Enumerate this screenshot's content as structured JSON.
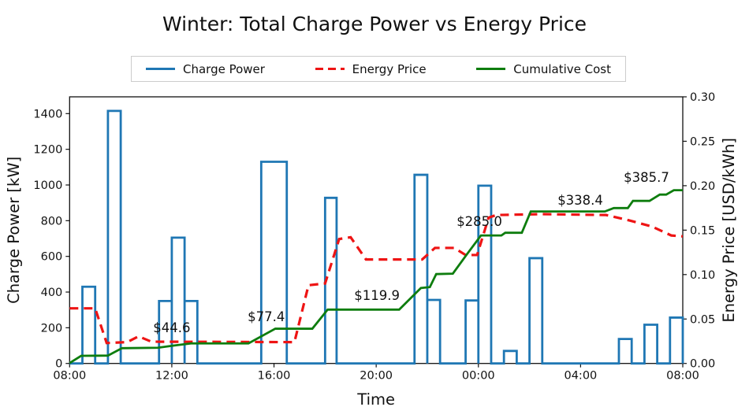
{
  "chart_data": {
    "type": "line",
    "title": "Winter: Total Charge Power vs Energy Price",
    "xlabel": "Time",
    "ylabel_left": "Charge Power [kW]",
    "ylabel_right": "Energy Price [USD/kWh]",
    "x_domain_hours": [
      8,
      32
    ],
    "x_ticks": [
      {
        "t": 8,
        "label": "08:00"
      },
      {
        "t": 12,
        "label": "12:00"
      },
      {
        "t": 16,
        "label": "16:00"
      },
      {
        "t": 20,
        "label": "20:00"
      },
      {
        "t": 24,
        "label": "00:00"
      },
      {
        "t": 28,
        "label": "04:00"
      },
      {
        "t": 32,
        "label": "08:00"
      }
    ],
    "y_left": {
      "lim": [
        0,
        1494
      ],
      "ticks": [
        0,
        200,
        400,
        600,
        800,
        1000,
        1200,
        1400
      ]
    },
    "y_right": {
      "lim": [
        0,
        0.3
      ],
      "ticks": [
        {
          "v": 0.0,
          "label": "0.00"
        },
        {
          "v": 0.05,
          "label": "0.05"
        },
        {
          "v": 0.1,
          "label": "0.10"
        },
        {
          "v": 0.15,
          "label": "0.15"
        },
        {
          "v": 0.2,
          "label": "0.20"
        },
        {
          "v": 0.25,
          "label": "0.25"
        },
        {
          "v": 0.3,
          "label": "0.30"
        }
      ]
    },
    "legend": [
      {
        "label": "Charge Power",
        "color": "#1f77b4",
        "style": "solid"
      },
      {
        "label": "Energy Price",
        "color": "#ee1414",
        "style": "dashed"
      },
      {
        "label": "Cumulative Cost",
        "color": "#0e7d0e",
        "style": "solid"
      }
    ],
    "grid": false,
    "legend_position": "top-center",
    "series": {
      "charge_power_kw": {
        "note": "step intervals [start_hour, end_hour, kW]; hours >24 are past midnight",
        "intervals": [
          [
            8.5,
            9.0,
            430
          ],
          [
            9.5,
            10.0,
            1415
          ],
          [
            11.5,
            12.0,
            350
          ],
          [
            12.0,
            12.5,
            705
          ],
          [
            12.5,
            13.0,
            350
          ],
          [
            15.5,
            16.5,
            1130
          ],
          [
            18.0,
            18.45,
            928
          ],
          [
            21.5,
            22.0,
            1057
          ],
          [
            22.0,
            22.5,
            356
          ],
          [
            23.5,
            24.0,
            353
          ],
          [
            24.0,
            24.5,
            996
          ],
          [
            25.0,
            25.5,
            70
          ],
          [
            26.0,
            26.5,
            590
          ],
          [
            29.5,
            30.0,
            137
          ],
          [
            30.5,
            31.0,
            217
          ],
          [
            31.5,
            32.0,
            257
          ]
        ]
      },
      "energy_price_usd_kwh": {
        "points": [
          [
            8.0,
            0.062
          ],
          [
            9.0,
            0.062
          ],
          [
            9.45,
            0.023
          ],
          [
            10.25,
            0.024
          ],
          [
            10.7,
            0.0305
          ],
          [
            11.2,
            0.0245
          ],
          [
            16.8,
            0.024
          ],
          [
            17.35,
            0.088
          ],
          [
            18.0,
            0.09
          ],
          [
            18.55,
            0.14
          ],
          [
            19.0,
            0.142
          ],
          [
            19.6,
            0.117
          ],
          [
            21.8,
            0.117
          ],
          [
            22.3,
            0.13
          ],
          [
            23.05,
            0.13
          ],
          [
            23.5,
            0.122
          ],
          [
            23.95,
            0.122
          ],
          [
            24.4,
            0.164
          ],
          [
            24.7,
            0.167
          ],
          [
            26.5,
            0.168
          ],
          [
            29.0,
            0.167
          ],
          [
            29.9,
            0.161
          ],
          [
            30.8,
            0.154
          ],
          [
            31.55,
            0.144
          ],
          [
            32.0,
            0.143
          ]
        ]
      },
      "cumulative_cost_usd": {
        "plotted_on_price_axis_divisor": 1979,
        "points": [
          [
            8.0,
            1
          ],
          [
            8.45,
            17
          ],
          [
            9.5,
            17.5
          ],
          [
            10.05,
            34
          ],
          [
            11.45,
            35
          ],
          [
            12.1,
            40
          ],
          [
            12.75,
            44.6
          ],
          [
            15.0,
            44.6
          ],
          [
            16.05,
            77.4
          ],
          [
            17.5,
            77.4
          ],
          [
            18.1,
            119.9
          ],
          [
            20.9,
            119.9
          ],
          [
            21.75,
            168
          ],
          [
            22.1,
            170
          ],
          [
            22.35,
            199
          ],
          [
            23.0,
            200
          ],
          [
            23.55,
            243
          ],
          [
            24.1,
            285.0
          ],
          [
            24.9,
            285.0
          ],
          [
            25.05,
            291
          ],
          [
            25.7,
            291
          ],
          [
            26.05,
            338.4
          ],
          [
            28.95,
            338.4
          ],
          [
            29.3,
            346
          ],
          [
            29.85,
            346
          ],
          [
            30.05,
            362
          ],
          [
            30.7,
            362
          ],
          [
            31.1,
            376
          ],
          [
            31.35,
            376
          ],
          [
            31.65,
            385.7
          ],
          [
            32.0,
            385.7
          ]
        ]
      }
    },
    "annotations": [
      {
        "label": "$44.6",
        "t": 12.0,
        "y_price": 0.0405
      },
      {
        "label": "$77.4",
        "t": 15.7,
        "y_price": 0.0529
      },
      {
        "label": "$119.9",
        "t": 20.03,
        "y_price": 0.0768
      },
      {
        "label": "$285.0",
        "t": 24.04,
        "y_price": 0.1601
      },
      {
        "label": "$338.4",
        "t": 27.99,
        "y_price": 0.184
      },
      {
        "label": "$385.7",
        "t": 30.58,
        "y_price": 0.2097
      }
    ]
  }
}
